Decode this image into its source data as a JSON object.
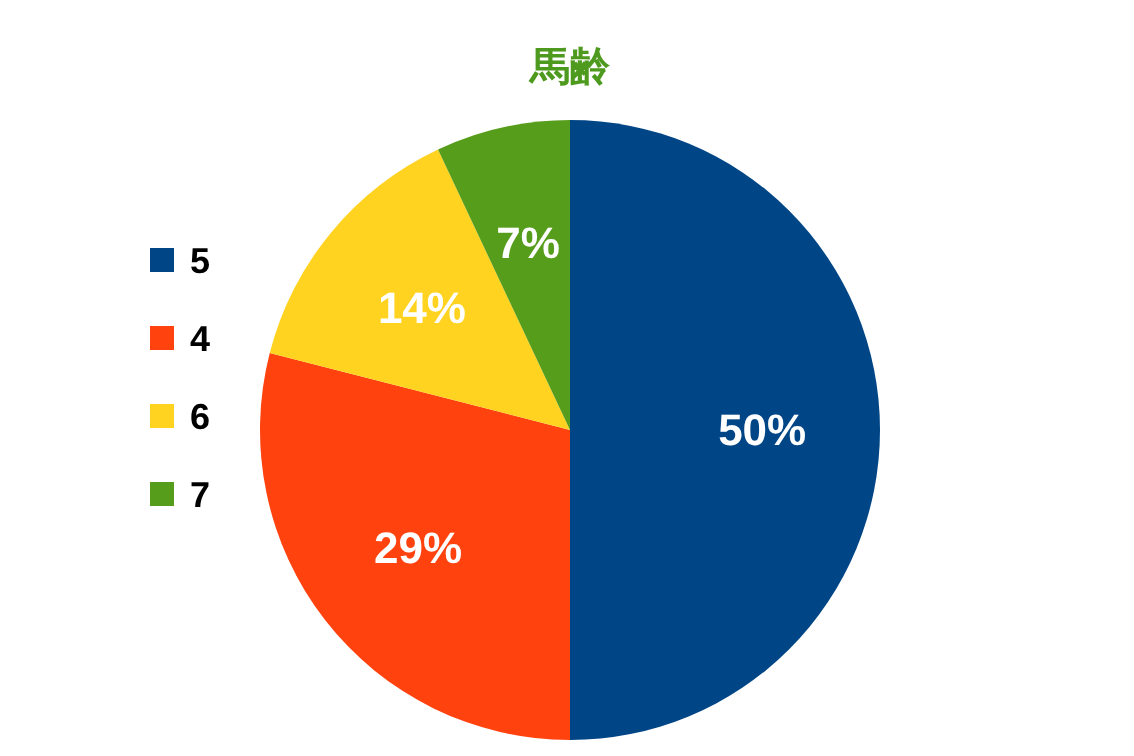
{
  "chart_data": {
    "type": "pie",
    "title": "馬齢",
    "categories": [
      "5",
      "4",
      "6",
      "7"
    ],
    "values": [
      50,
      29,
      14,
      7
    ],
    "colors": [
      "#004586",
      "#ff420e",
      "#ffd320",
      "#579d1c"
    ],
    "value_labels": [
      "50%",
      "29%",
      "14%",
      "7%"
    ],
    "legend": "left"
  }
}
